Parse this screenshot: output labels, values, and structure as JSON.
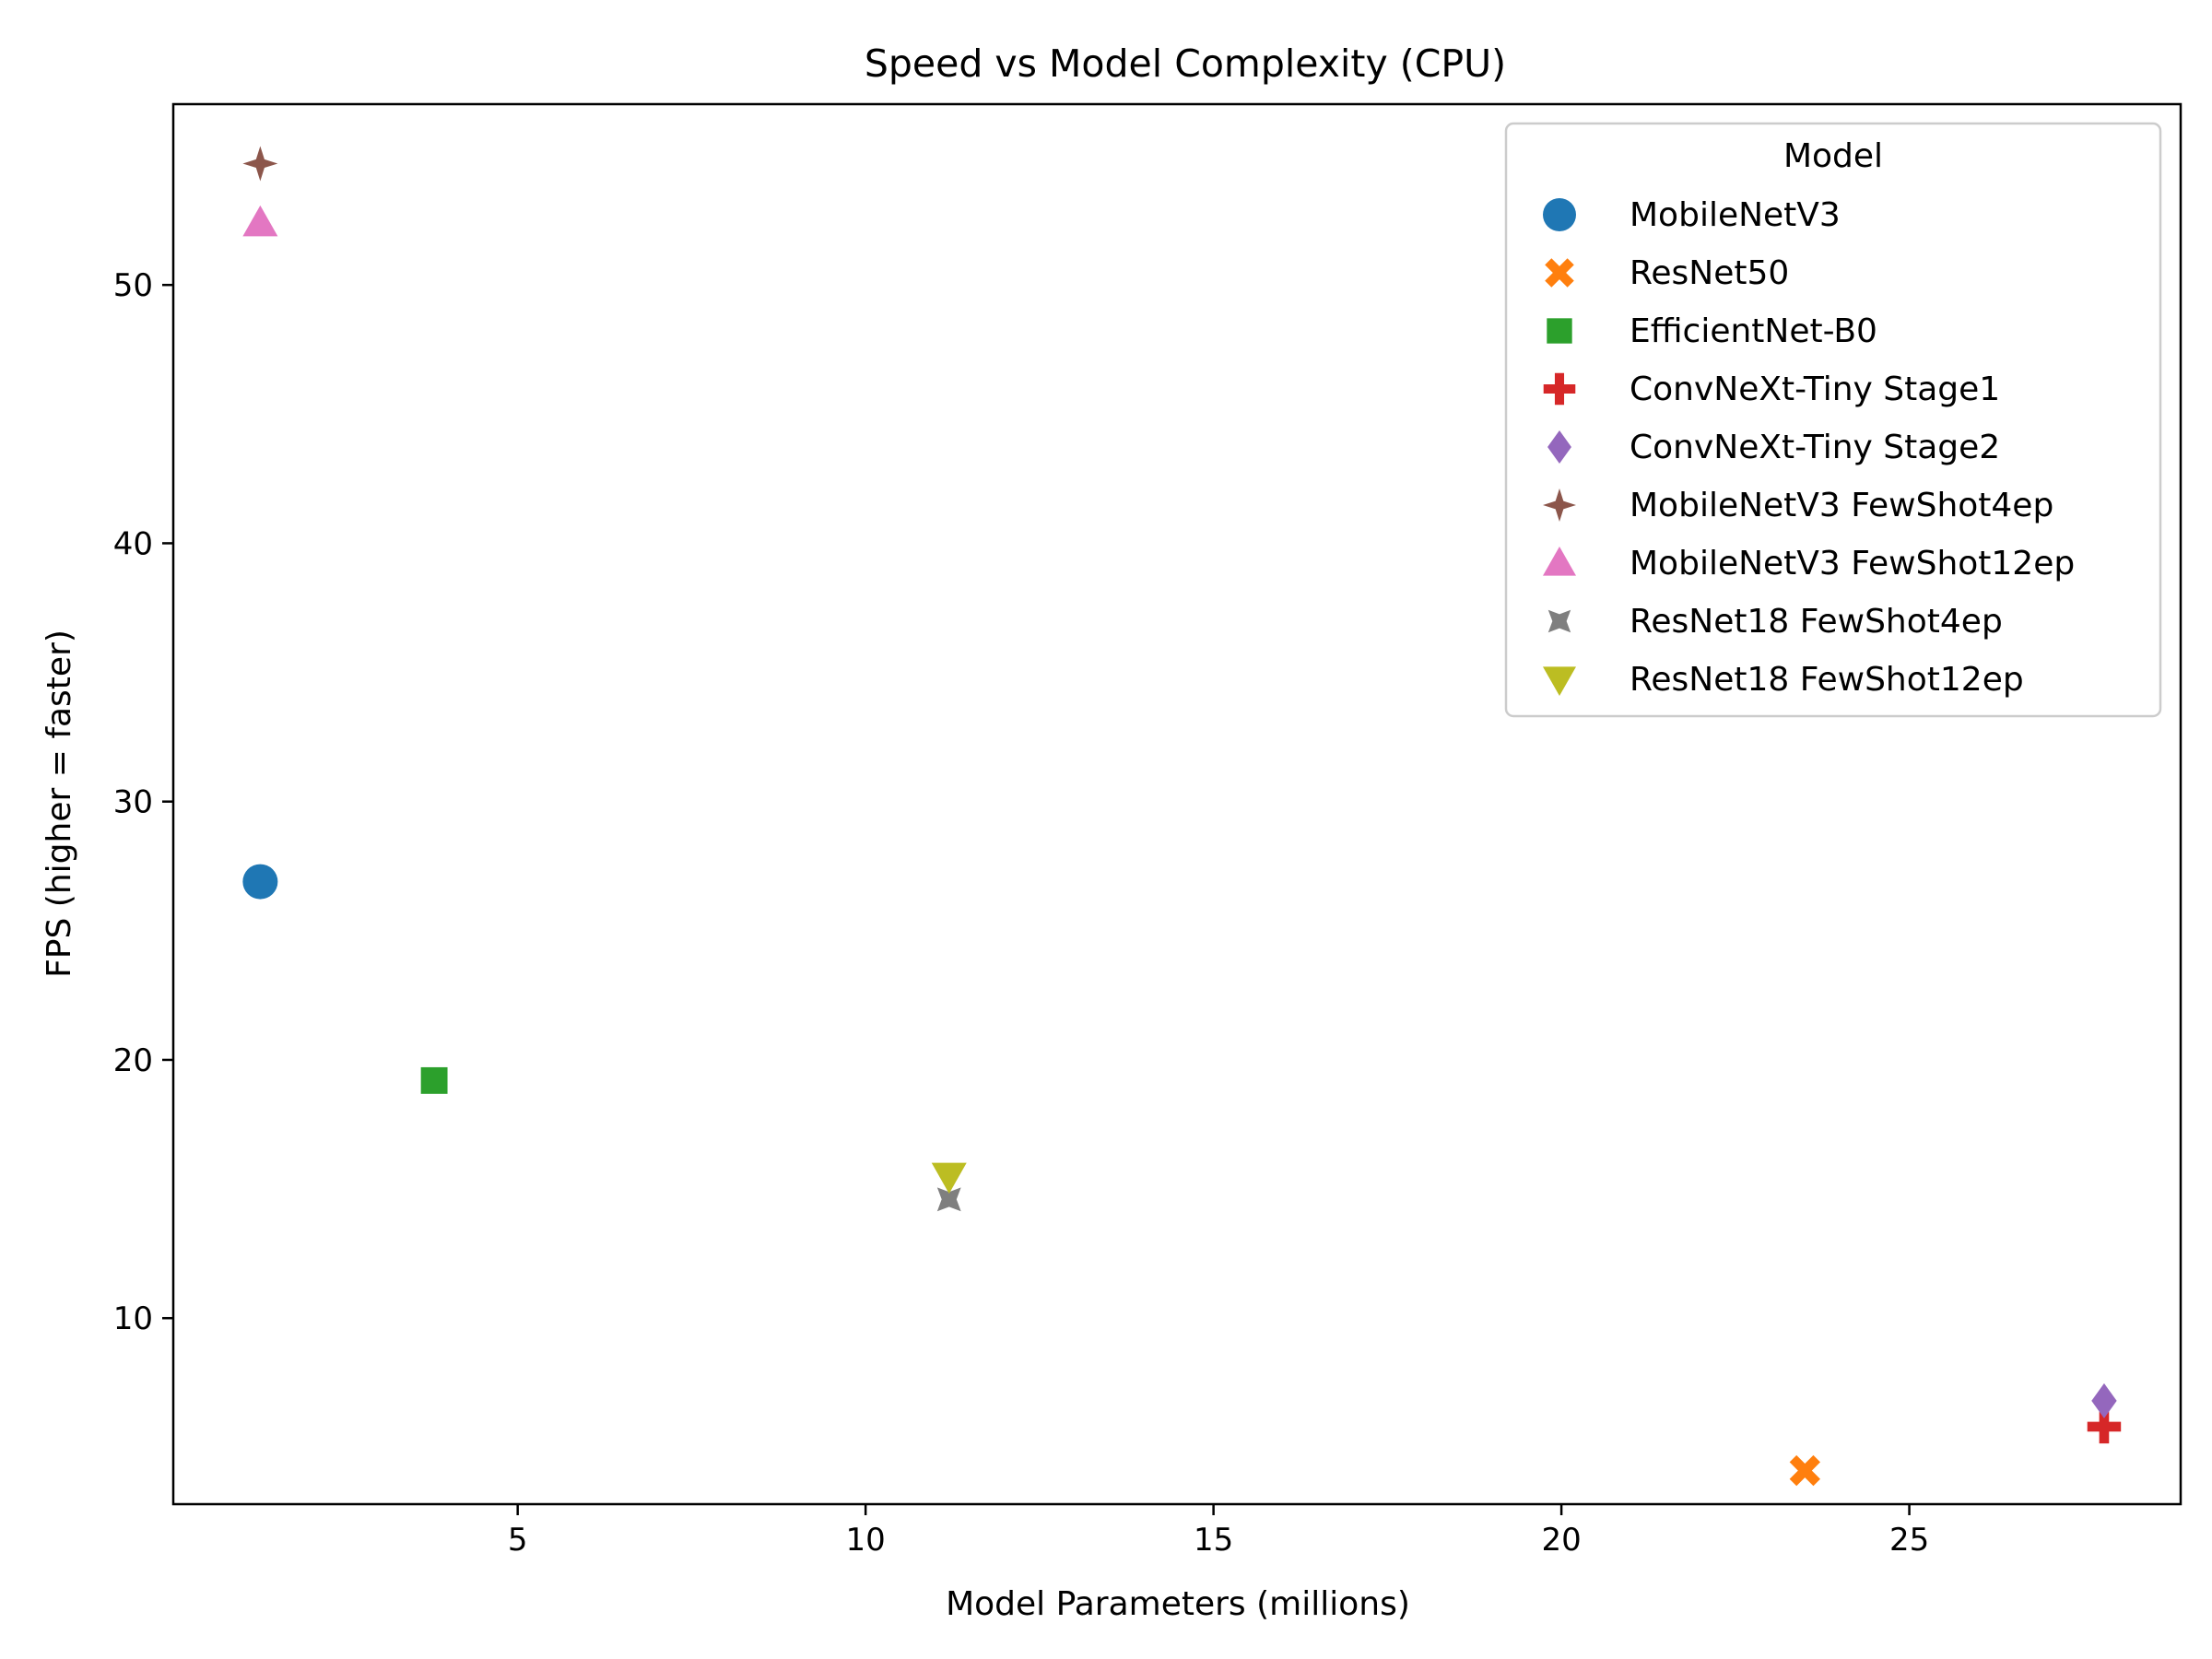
{
  "chart_data": {
    "type": "scatter",
    "title": "Speed vs Model Complexity (CPU)",
    "xlabel": "Model Parameters (millions)",
    "ylabel": "FPS (higher = faster)",
    "xlim": [
      0.05,
      28.9
    ],
    "ylim": [
      2.8,
      57.0
    ],
    "xticks": [
      5,
      10,
      15,
      20,
      25
    ],
    "yticks": [
      10,
      20,
      30,
      40,
      50
    ],
    "grid": false,
    "legend": {
      "title": "Model",
      "placement": "top-right"
    },
    "series": [
      {
        "name": "MobileNetV3",
        "marker": "circle",
        "color": "#1f77b4",
        "x": 1.3,
        "y": 26.9
      },
      {
        "name": "ResNet50",
        "marker": "x-filled",
        "color": "#ff7f0e",
        "x": 23.5,
        "y": 4.1
      },
      {
        "name": "EfficientNet-B0",
        "marker": "square",
        "color": "#2ca02c",
        "x": 3.8,
        "y": 19.2
      },
      {
        "name": "ConvNeXt-Tiny Stage1",
        "marker": "plus-filled",
        "color": "#d62728",
        "x": 27.8,
        "y": 5.8
      },
      {
        "name": "ConvNeXt-Tiny Stage2",
        "marker": "diamond",
        "color": "#9467bd",
        "x": 27.8,
        "y": 6.8
      },
      {
        "name": "MobileNetV3 FewShot4ep",
        "marker": "star4",
        "color": "#8c564b",
        "x": 1.3,
        "y": 54.7
      },
      {
        "name": "MobileNetV3 FewShot12ep",
        "marker": "triangle-up",
        "color": "#e377c2",
        "x": 1.3,
        "y": 52.4
      },
      {
        "name": "ResNet18 FewShot4ep",
        "marker": "star4-rot",
        "color": "#7f7f7f",
        "x": 11.2,
        "y": 14.6
      },
      {
        "name": "ResNet18 FewShot12ep",
        "marker": "triangle-down",
        "color": "#bcbd22",
        "x": 11.2,
        "y": 15.5
      }
    ]
  }
}
